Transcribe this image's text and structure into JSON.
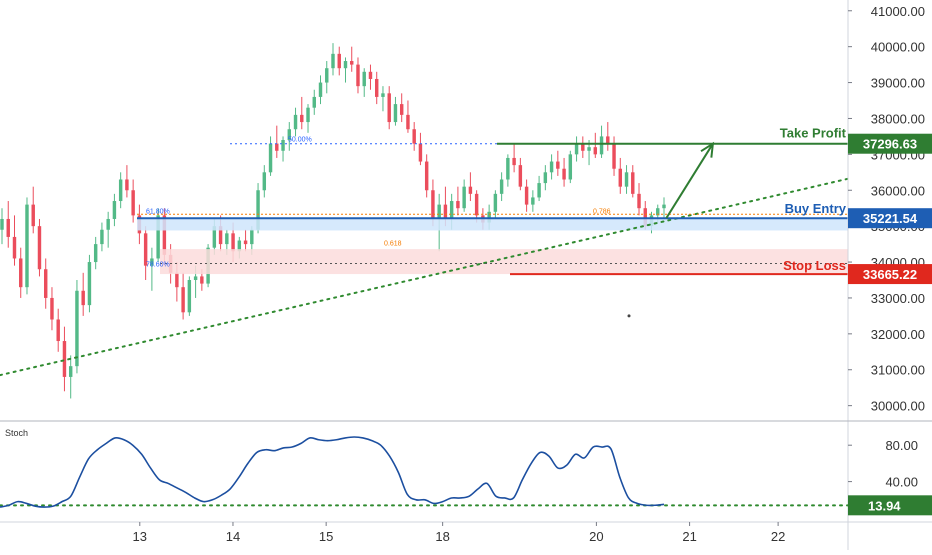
{
  "chart_data": {
    "type": "candlestick",
    "colors": {
      "up": "#53b987",
      "down": "#eb4d5c",
      "axis_text": "#333333",
      "grid_line": "#b2b5be",
      "trendline": "#2f8a2f",
      "take_profit": "#2f7d32",
      "buy_entry": "#1e5eb4",
      "stop_loss": "#e0281e",
      "stoch_line": "#1c4fa0",
      "fib_text_blue": "#2962ff",
      "fib_text_orange": "#f57c00",
      "buy_zone_fill": "#cfe5fb",
      "stop_zone_fill": "#fbdcdc"
    },
    "price_axis": {
      "ylim": [
        29600,
        41300
      ],
      "ticks": [
        30000,
        31000,
        32000,
        33000,
        34000,
        35000,
        36000,
        37000,
        38000,
        39000,
        40000,
        41000
      ],
      "tick_labels": [
        "30000.00",
        "31000.00",
        "32000.00",
        "33000.00",
        "34000.00",
        "35000.00",
        "36000.00",
        "37000.00",
        "38000.00",
        "39000.00",
        "40000.00",
        "41000.00"
      ]
    },
    "x_axis": {
      "ticks": [
        {
          "label": "13",
          "x": 13
        },
        {
          "label": "14",
          "x": 14
        },
        {
          "label": "15",
          "x": 15
        },
        {
          "label": "18",
          "x": 16.25
        },
        {
          "label": "20",
          "x": 17.9
        },
        {
          "label": "21",
          "x": 18.9
        },
        {
          "label": "22",
          "x": 19.85
        }
      ],
      "xlim": [
        11.5,
        20.6
      ]
    },
    "candles_ohlc": [
      [
        34900,
        35500,
        34500,
        35200
      ],
      [
        35200,
        35700,
        34400,
        34700
      ],
      [
        34700,
        35300,
        33900,
        34100
      ],
      [
        34100,
        34400,
        33000,
        33300
      ],
      [
        33300,
        35800,
        33100,
        35600
      ],
      [
        35600,
        36100,
        34800,
        35000
      ],
      [
        35000,
        35200,
        33600,
        33800
      ],
      [
        33800,
        34100,
        32700,
        33000
      ],
      [
        33000,
        33300,
        32100,
        32400
      ],
      [
        32400,
        32700,
        31500,
        31800
      ],
      [
        31800,
        32200,
        30400,
        30800
      ],
      [
        30800,
        31400,
        30200,
        31100
      ],
      [
        31100,
        33500,
        30900,
        33200
      ],
      [
        33200,
        33700,
        32500,
        32800
      ],
      [
        32800,
        34200,
        32600,
        34000
      ],
      [
        34000,
        34700,
        33800,
        34500
      ],
      [
        34500,
        35100,
        34300,
        34900
      ],
      [
        34900,
        35400,
        34400,
        35200
      ],
      [
        35200,
        35900,
        35000,
        35700
      ],
      [
        35700,
        36500,
        35500,
        36300
      ],
      [
        36300,
        36700,
        35800,
        36000
      ],
      [
        36000,
        36300,
        35100,
        35300
      ],
      [
        35300,
        35600,
        34500,
        34800
      ],
      [
        34800,
        35000,
        33500,
        33900
      ],
      [
        33900,
        34400,
        33200,
        34100
      ],
      [
        34100,
        35500,
        34000,
        35300
      ],
      [
        35300,
        35500,
        33900,
        34200
      ],
      [
        34200,
        34500,
        33400,
        33700
      ],
      [
        33700,
        34000,
        32900,
        33300
      ],
      [
        33300,
        33700,
        32400,
        32600
      ],
      [
        32600,
        33600,
        32500,
        33500
      ],
      [
        33500,
        33900,
        33000,
        33600
      ],
      [
        33600,
        33800,
        33200,
        33400
      ],
      [
        33400,
        34500,
        33300,
        34400
      ],
      [
        34400,
        35200,
        34200,
        35000
      ],
      [
        35000,
        35300,
        34300,
        34500
      ],
      [
        34500,
        34900,
        34200,
        34800
      ],
      [
        34800,
        35100,
        34000,
        34300
      ],
      [
        34300,
        34700,
        34100,
        34600
      ],
      [
        34600,
        34900,
        34300,
        34500
      ],
      [
        34500,
        35000,
        34200,
        34900
      ],
      [
        34900,
        36200,
        34800,
        36000
      ],
      [
        36000,
        36700,
        35800,
        36500
      ],
      [
        36500,
        37500,
        36400,
        37300
      ],
      [
        37300,
        37800,
        36900,
        37100
      ],
      [
        37100,
        37500,
        36800,
        37400
      ],
      [
        37400,
        37900,
        37100,
        37700
      ],
      [
        37700,
        38300,
        37500,
        38100
      ],
      [
        38100,
        38600,
        37700,
        37900
      ],
      [
        37900,
        38400,
        37600,
        38300
      ],
      [
        38300,
        38800,
        38100,
        38600
      ],
      [
        38600,
        39200,
        38400,
        39000
      ],
      [
        39000,
        39600,
        38700,
        39400
      ],
      [
        39400,
        40100,
        39200,
        39800
      ],
      [
        39800,
        40000,
        39200,
        39400
      ],
      [
        39400,
        39700,
        39000,
        39600
      ],
      [
        39600,
        40000,
        39300,
        39500
      ],
      [
        39500,
        39700,
        38700,
        38900
      ],
      [
        38900,
        39400,
        38600,
        39300
      ],
      [
        39300,
        39500,
        38800,
        39100
      ],
      [
        39100,
        39300,
        38400,
        38600
      ],
      [
        38600,
        38900,
        38200,
        38700
      ],
      [
        38700,
        38900,
        37700,
        37900
      ],
      [
        37900,
        38600,
        37800,
        38400
      ],
      [
        38400,
        38700,
        37900,
        38100
      ],
      [
        38100,
        38500,
        37600,
        37700
      ],
      [
        37700,
        37900,
        37100,
        37300
      ],
      [
        37300,
        37600,
        36700,
        36800
      ],
      [
        36800,
        37000,
        35800,
        36000
      ],
      [
        36000,
        36300,
        35000,
        35200
      ],
      [
        35200,
        35900,
        34300,
        35600
      ],
      [
        35600,
        36100,
        35000,
        35200
      ],
      [
        35200,
        35900,
        34900,
        35700
      ],
      [
        35700,
        36100,
        35300,
        35500
      ],
      [
        35500,
        36300,
        35400,
        36100
      ],
      [
        36100,
        36500,
        35700,
        35900
      ],
      [
        35900,
        36000,
        35100,
        35300
      ],
      [
        35300,
        35500,
        34900,
        35100
      ],
      [
        35100,
        35600,
        34900,
        35400
      ],
      [
        35400,
        36000,
        35200,
        35900
      ],
      [
        35900,
        36500,
        35700,
        36300
      ],
      [
        36300,
        37000,
        36100,
        36900
      ],
      [
        36900,
        37300,
        36500,
        36700
      ],
      [
        36700,
        36900,
        36000,
        36100
      ],
      [
        36100,
        36300,
        35400,
        35600
      ],
      [
        35600,
        36000,
        35400,
        35800
      ],
      [
        35800,
        36400,
        35700,
        36200
      ],
      [
        36200,
        36700,
        36000,
        36500
      ],
      [
        36500,
        37000,
        36300,
        36800
      ],
      [
        36800,
        37100,
        36400,
        36600
      ],
      [
        36600,
        36900,
        36100,
        36300
      ],
      [
        36300,
        37100,
        36200,
        37000
      ],
      [
        37000,
        37500,
        36800,
        37300
      ],
      [
        37300,
        37500,
        36900,
        37100
      ],
      [
        37100,
        37400,
        36700,
        37200
      ],
      [
        37200,
        37600,
        36900,
        37000
      ],
      [
        37000,
        37800,
        36900,
        37500
      ],
      [
        37500,
        37900,
        37100,
        37300
      ],
      [
        37300,
        37500,
        36400,
        36600
      ],
      [
        36600,
        36900,
        35900,
        36100
      ],
      [
        36100,
        36700,
        35900,
        36500
      ],
      [
        36500,
        36700,
        35800,
        35900
      ],
      [
        35900,
        36200,
        35300,
        35500
      ],
      [
        35500,
        35700,
        34900,
        35000
      ],
      [
        35000,
        35400,
        34800,
        35300
      ],
      [
        35300,
        35600,
        35100,
        35500
      ],
      [
        35500,
        35800,
        35200,
        35600
      ]
    ],
    "stoch_axis": {
      "ylim": [
        0,
        100
      ],
      "ticks": [
        40,
        80
      ],
      "tick_labels": [
        "40.00",
        "80.00"
      ],
      "title": "Stoch"
    },
    "stoch_values": [
      12,
      14,
      18,
      16,
      13,
      12,
      13,
      18,
      24,
      45,
      65,
      75,
      82,
      88,
      86,
      80,
      70,
      55,
      42,
      38,
      33,
      28,
      22,
      18,
      20,
      25,
      32,
      45,
      60,
      72,
      75,
      74,
      77,
      78,
      82,
      88,
      86,
      85,
      86,
      88,
      89,
      88,
      85,
      80,
      68,
      50,
      26,
      20,
      20,
      16,
      18,
      22,
      22,
      24,
      32,
      38,
      24,
      22,
      22,
      42,
      60,
      72,
      68,
      55,
      58,
      70,
      66,
      78,
      78,
      76,
      45,
      22,
      16,
      14,
      14,
      15
    ],
    "fib_levels": [
      {
        "label": "50.00%",
        "price": 37296,
        "color_key": "fib_text_blue"
      },
      {
        "label": "61.80%",
        "price": 35320,
        "color_key": "fib_text_blue"
      },
      {
        "label": "0.786",
        "price": 35320,
        "color_key": "fib_text_orange"
      },
      {
        "label": "0.618",
        "price": 34380,
        "color_key": "fib_text_orange"
      },
      {
        "label": "78.60%",
        "price": 33960,
        "color_key": "fib_text_blue"
      }
    ],
    "levels": {
      "take_profit": {
        "label": "Take Profit",
        "price_label": "37296.63",
        "price": 37296.63
      },
      "buy_entry": {
        "label": "Buy Entry",
        "price_label": "35221.54",
        "price": 35221.54
      },
      "stop_loss": {
        "label": "Stop Loss",
        "price_label": "33665.22",
        "price": 33665.22
      }
    },
    "stoch_level": {
      "label": "13.94",
      "value": 13.94
    },
    "zones": {
      "buy": {
        "from": 34880,
        "to": 35221.54
      },
      "stop": {
        "from": 33665.22,
        "to": 34360
      }
    },
    "trendline": {
      "from": {
        "x": 11.5,
        "price": 30850
      },
      "to": {
        "x": 20.6,
        "price": 36320
      }
    },
    "projection_arrow": {
      "from": {
        "x": 18.65,
        "price": 35221.54
      },
      "to": {
        "x": 19.15,
        "price": 37296.63
      }
    },
    "annotation_dot": {
      "x": 18.25,
      "price": 32500
    }
  }
}
